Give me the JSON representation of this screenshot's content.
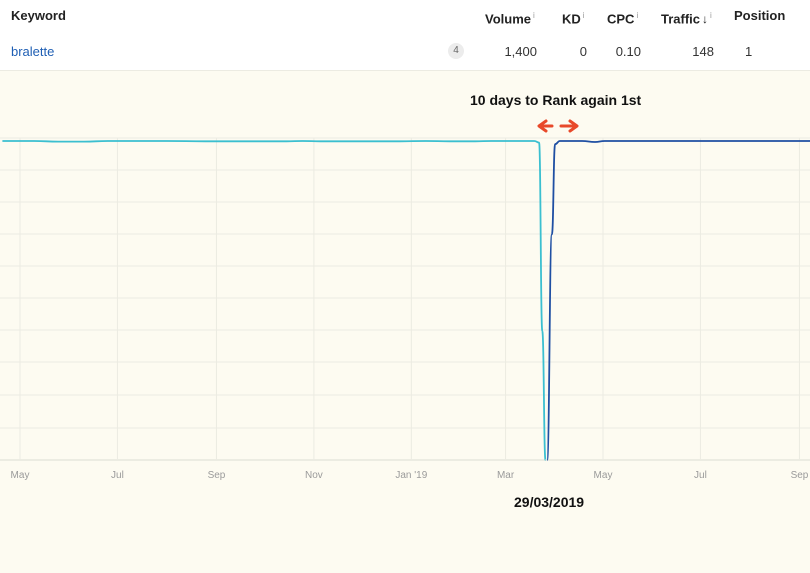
{
  "table": {
    "columns": {
      "keyword": "Keyword",
      "volume": "Volume",
      "kd": "KD",
      "cpc": "CPC",
      "traffic": "Traffic",
      "position": "Position",
      "info_mark": "i",
      "sort_icon": "sort-down-icon"
    },
    "row": {
      "keyword": "bralette",
      "badge": "4",
      "volume": "1,400",
      "kd": "0",
      "cpc": "0.10",
      "traffic": "148",
      "position": "1"
    }
  },
  "annotations": {
    "title": "10 days to Rank again 1st",
    "date": "29/03/2019",
    "arrow_color": "#e8492a"
  },
  "chart_data": {
    "type": "line",
    "x_tick_labels": [
      "May",
      "Jul",
      "Sep",
      "Nov",
      "Jan '19",
      "Mar",
      "May",
      "Jul",
      "Sep"
    ],
    "grid": true,
    "y_axis": "position (inverted)",
    "series": [
      {
        "color": "#3bbfd0",
        "x": [
          "2018-04-20",
          "2018-05-10",
          "2018-05-25",
          "2018-06-10",
          "2018-06-25",
          "2018-07-15",
          "2018-08-01",
          "2018-08-25",
          "2018-09-10",
          "2018-10-01",
          "2018-10-15",
          "2018-10-25",
          "2018-11-05",
          "2018-11-20",
          "2018-12-10",
          "2018-12-25",
          "2019-01-10",
          "2019-01-25",
          "2019-02-10",
          "2019-02-20",
          "2019-03-05",
          "2019-03-19",
          "2019-03-22",
          "2019-03-24",
          "2019-03-26"
        ],
        "values": [
          1,
          1,
          1.2,
          1.2,
          1,
          1,
          1,
          1.1,
          1.1,
          1.1,
          1.1,
          1,
          1.1,
          1.1,
          1.1,
          1.1,
          1,
          1.1,
          1.1,
          1,
          1,
          1,
          1.5,
          60,
          100
        ]
      },
      {
        "color": "#1f4fa3",
        "x": [
          "2019-03-27",
          "2019-03-30",
          "2019-04-01",
          "2019-04-04",
          "2019-04-10",
          "2019-04-18",
          "2019-04-26",
          "2019-05-02",
          "2019-05-08",
          "2019-05-20",
          "2019-06-10",
          "2019-07-10",
          "2019-08-10",
          "2019-09-10",
          "2019-10-10"
        ],
        "values": [
          100,
          30,
          2,
          1,
          1,
          1,
          1.3,
          1,
          1,
          1,
          1,
          1,
          1,
          1,
          1
        ]
      }
    ]
  }
}
